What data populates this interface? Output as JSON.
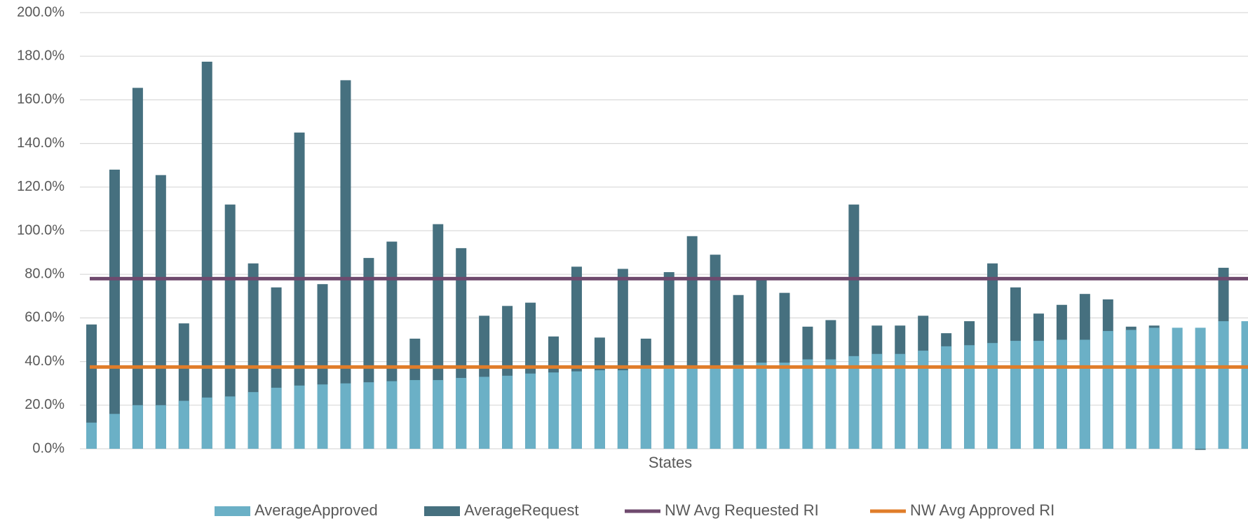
{
  "chart_data": {
    "type": "bar",
    "x_label": "States",
    "categories": [
      null,
      null,
      null,
      null,
      null,
      null,
      null,
      null,
      null,
      null,
      null,
      null,
      null,
      null,
      null,
      null,
      null,
      null,
      null,
      null,
      null,
      null,
      null,
      null,
      null,
      null,
      null,
      null,
      null,
      null,
      null,
      null,
      null,
      null,
      null,
      null,
      null,
      null,
      null,
      null,
      null,
      null,
      null,
      null,
      null,
      null,
      null,
      null,
      null,
      null,
      null
    ],
    "series": [
      {
        "name": "AverageApproved",
        "color": "#6bb0c6",
        "values": [
          12,
          16,
          20,
          20,
          22,
          23.5,
          24,
          26,
          28,
          29,
          29.5,
          30,
          30.5,
          31,
          31.5,
          31.5,
          32.5,
          33,
          33.5,
          34.5,
          35,
          35.5,
          36,
          36,
          37.5,
          38,
          38,
          38,
          38.5,
          39.5,
          39.5,
          41,
          41,
          42.5,
          43.5,
          43.5,
          45,
          47,
          47.5,
          48.5,
          49.5,
          49.5,
          50,
          50,
          54,
          54.5,
          55.5,
          55.5,
          55.5,
          58.5,
          58.5
        ]
      },
      {
        "name": "AverageRequest",
        "color": "#46707f",
        "values": [
          57,
          128,
          165.5,
          125.5,
          57.5,
          177.5,
          112,
          85,
          74,
          145,
          75.5,
          169,
          87.5,
          95,
          50.5,
          103,
          92,
          61,
          65.5,
          67,
          51.5,
          83.5,
          51,
          82.5,
          50.5,
          81,
          97.5,
          89,
          70.5,
          78,
          71.5,
          56,
          59,
          112,
          56.5,
          56.5,
          61,
          53,
          58.5,
          85,
          74,
          62,
          66,
          71,
          68.5,
          56,
          56.5,
          0,
          -0.5,
          83,
          0
        ]
      }
    ],
    "lines": [
      {
        "name": "NW Avg Requested RI",
        "color": "#6f4a6e",
        "value": 78
      },
      {
        "name": "NW Avg Approved RI",
        "color": "#e07d2a",
        "value": 37.5
      }
    ],
    "ylim": [
      0,
      200
    ],
    "yticks": [
      {
        "value": 0,
        "label": "0.0%"
      },
      {
        "value": 20,
        "label": "20.0%"
      },
      {
        "value": 40,
        "label": "40.0%"
      },
      {
        "value": 60,
        "label": "60.0%"
      },
      {
        "value": 80,
        "label": "80.0%"
      },
      {
        "value": 100,
        "label": "100.0%"
      },
      {
        "value": 120,
        "label": "120.0%"
      },
      {
        "value": 140,
        "label": "140.0%"
      },
      {
        "value": 160,
        "label": "160.0%"
      },
      {
        "value": 180,
        "label": "180.0%"
      },
      {
        "value": 200,
        "label": "200.0%"
      }
    ],
    "grid": true,
    "legend": "bottom"
  }
}
